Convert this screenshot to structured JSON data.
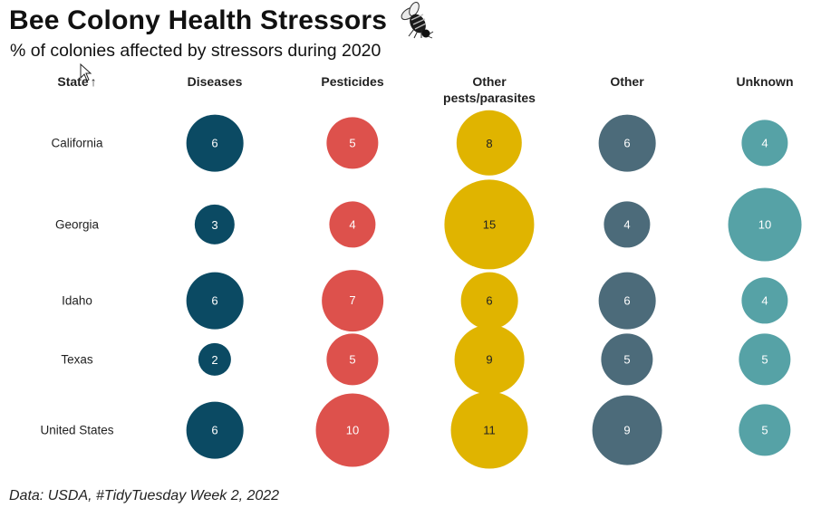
{
  "title": "Bee Colony Health Stressors",
  "subtitle": "% of colonies affected by stressors during 2020",
  "caption": "Data: USDA, #TidyTuesday Week 2, 2022",
  "icons": {
    "bee": "bee-icon",
    "cursor": "mouse-pointer-icon",
    "sort": "↑"
  },
  "chart_data": {
    "type": "table",
    "row_header": "State",
    "sort": "ascending",
    "columns": [
      "Diseases",
      "Pesticides",
      "Other pests/parasites",
      "Other",
      "Unknown"
    ],
    "column_colors": [
      "#0b4a63",
      "#dd514c",
      "#e0b400",
      "#4c6b7a",
      "#56a2a6"
    ],
    "rows": [
      {
        "state": "California",
        "values": [
          6,
          5,
          8,
          6,
          4
        ]
      },
      {
        "state": "Georgia",
        "values": [
          3,
          4,
          15,
          4,
          10
        ]
      },
      {
        "state": "Idaho",
        "values": [
          6,
          7,
          6,
          6,
          4
        ]
      },
      {
        "state": "Texas",
        "values": [
          2,
          5,
          9,
          5,
          5
        ]
      },
      {
        "state": "United States",
        "values": [
          6,
          10,
          11,
          9,
          5
        ]
      }
    ]
  }
}
